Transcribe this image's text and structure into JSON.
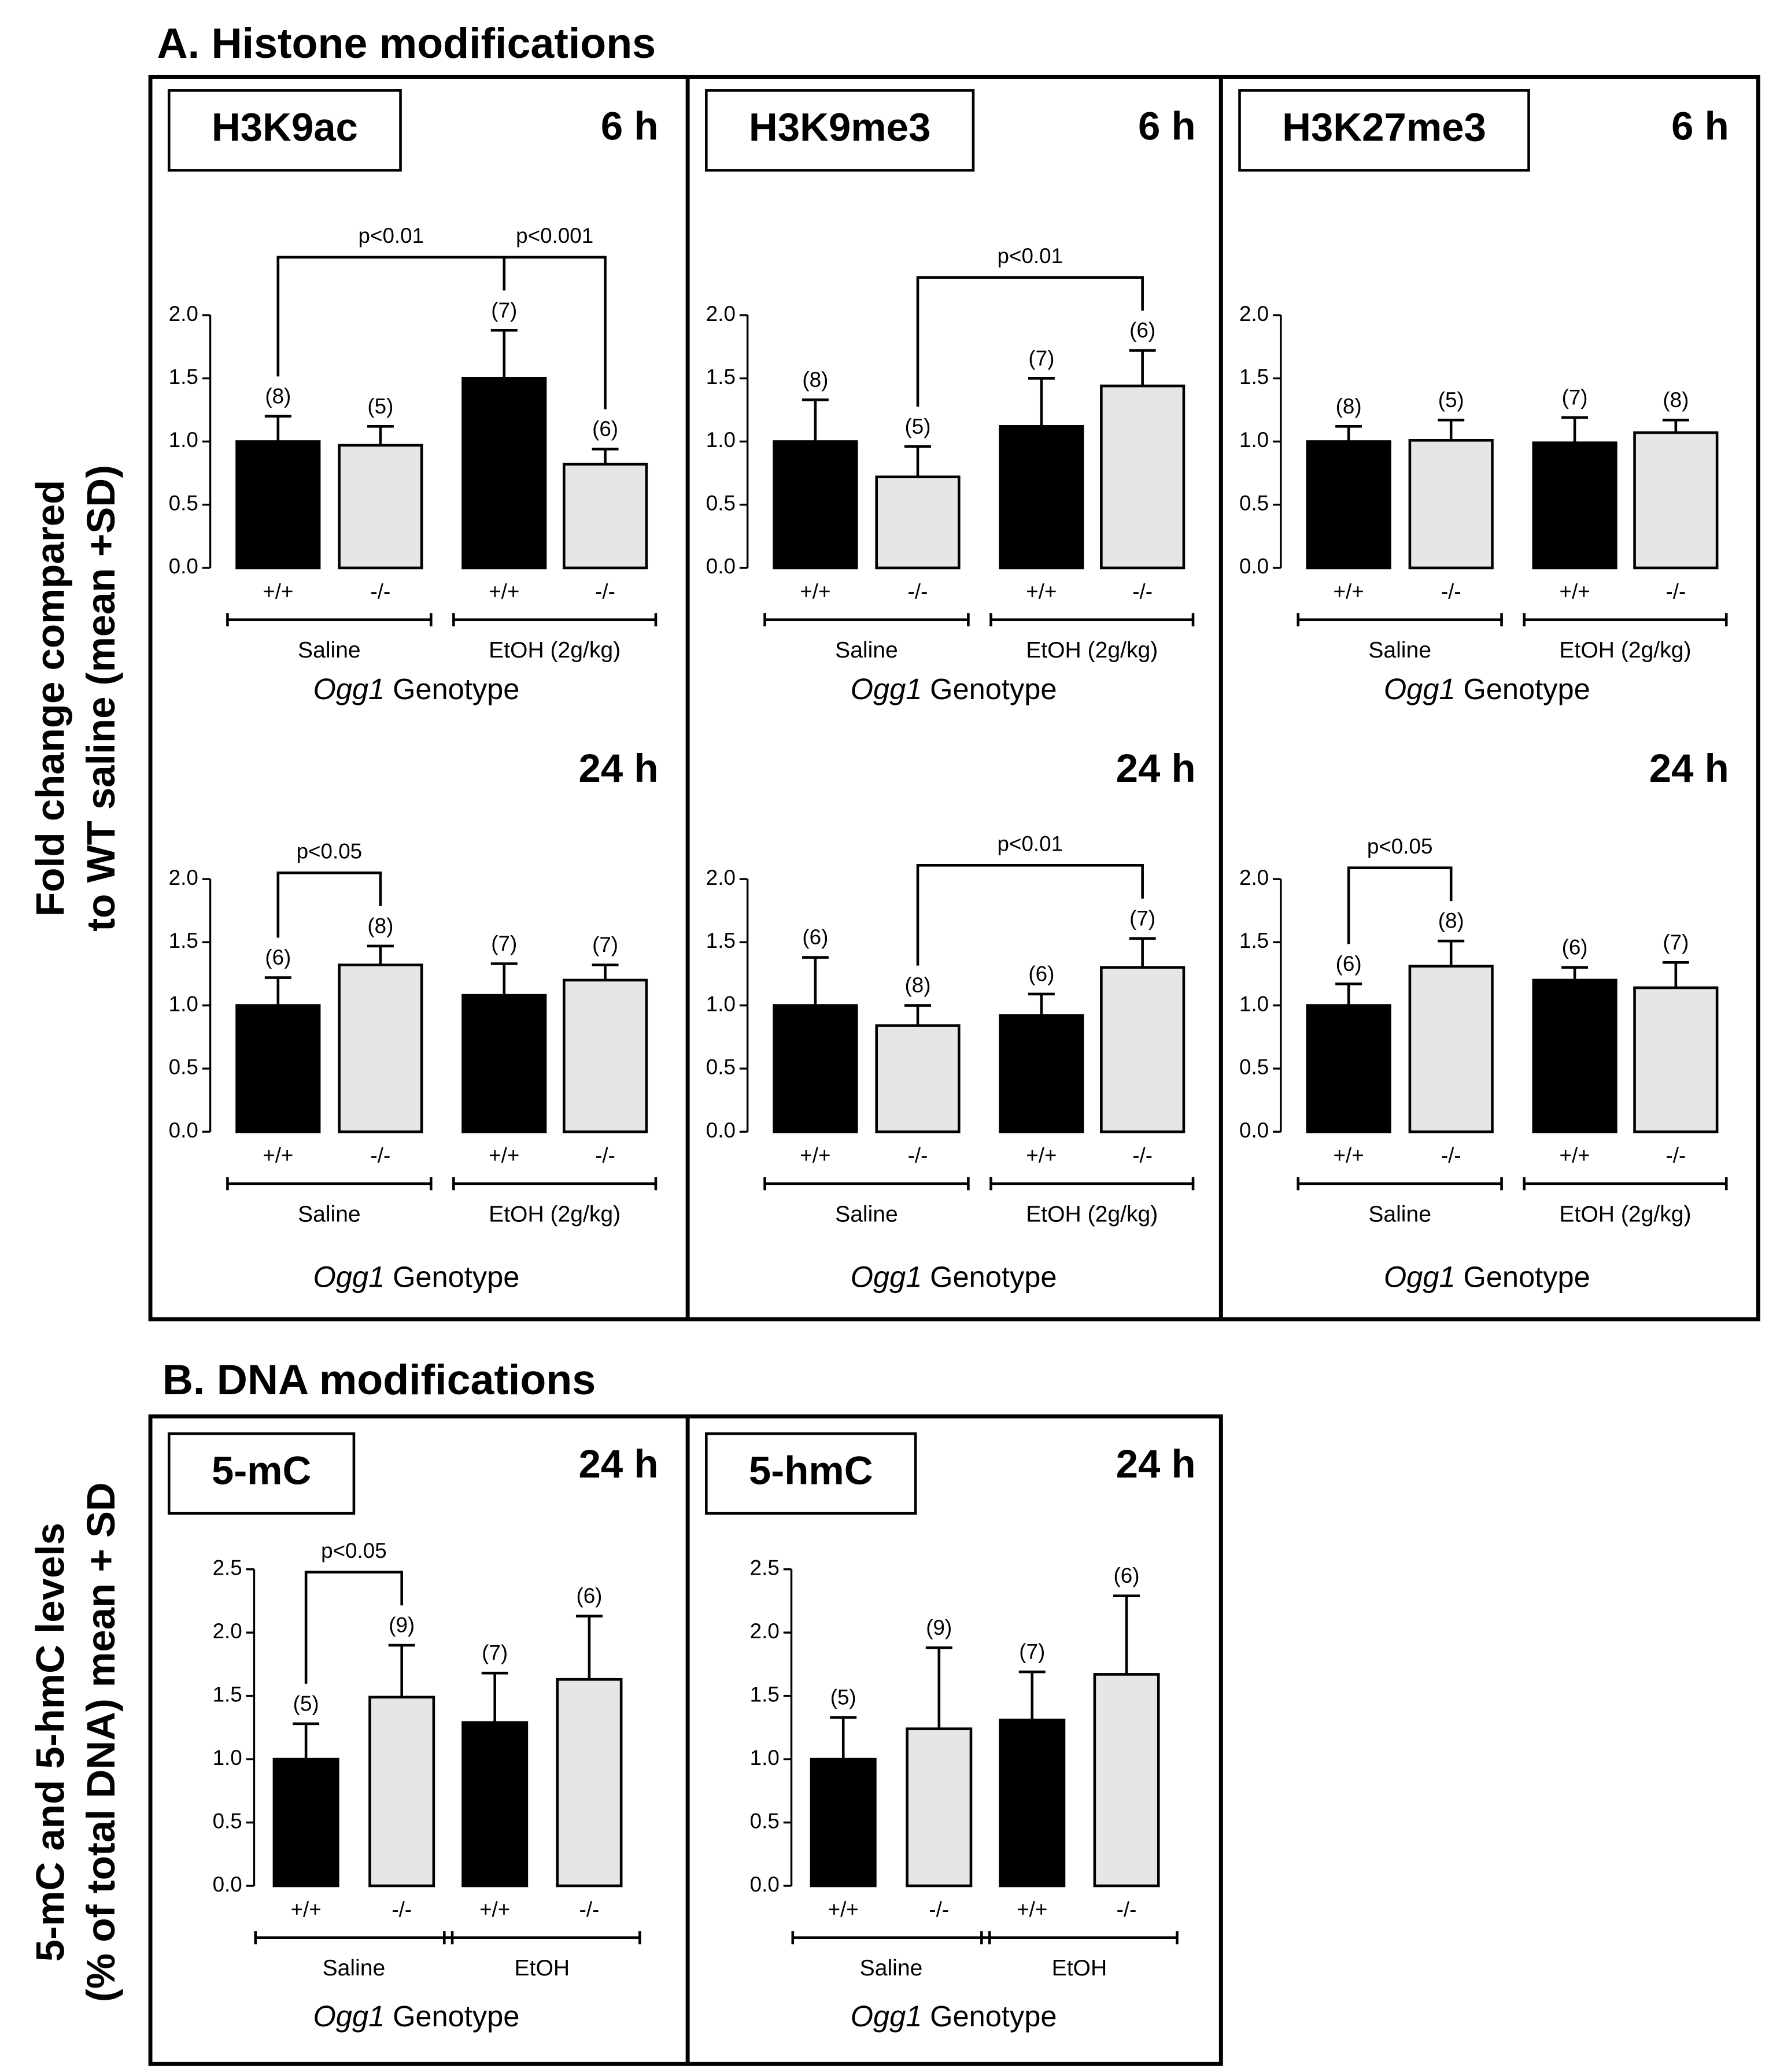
{
  "sections": [
    {
      "title": "A. Histone modifications",
      "y_label": [
        "Fold change compared",
        "to WT saline (mean +SD)"
      ]
    },
    {
      "title": "B. DNA modifications",
      "y_label": [
        "5-mC and 5-hmC levels",
        "(% of total DNA) mean + SD"
      ]
    }
  ],
  "chart_data": [
    {
      "type": "bar",
      "marker": "H3K9ac",
      "time": "6 h",
      "categories": [
        "+/+",
        "-/-",
        "+/+",
        "-/-"
      ],
      "groups": [
        "Saline",
        "EtOH (2g/kg)"
      ],
      "x_label": {
        "gene": "Ogg1",
        "rest": "Genotype"
      },
      "values": [
        1.0,
        0.97,
        1.5,
        0.82
      ],
      "errors": [
        0.2,
        0.15,
        0.38,
        0.12
      ],
      "n_labels": [
        "(8)",
        "(5)",
        "(7)",
        "(6)"
      ],
      "colors": [
        "#000000",
        "#e6e6e6",
        "#000000",
        "#e6e6e6"
      ],
      "ylim": [
        0,
        2
      ],
      "yticks": [
        {
          "value": 0,
          "label": "0.0"
        },
        {
          "value": 0.5,
          "label": "0.5"
        },
        {
          "value": 1,
          "label": "1.0"
        },
        {
          "value": 1.5,
          "label": "1.5"
        },
        {
          "value": 2,
          "label": "2.0"
        }
      ],
      "brackets": [
        {
          "from": 0,
          "to": 2,
          "label": "p<0.01"
        },
        {
          "from": 2,
          "to": 3,
          "label": "p<0.001"
        }
      ]
    },
    {
      "type": "bar",
      "marker": "H3K9me3",
      "time": "6 h",
      "categories": [
        "+/+",
        "-/-",
        "+/+",
        "-/-"
      ],
      "groups": [
        "Saline",
        "EtOH (2g/kg)"
      ],
      "x_label": {
        "gene": "Ogg1",
        "rest": "Genotype"
      },
      "values": [
        1.0,
        0.72,
        1.12,
        1.44
      ],
      "errors": [
        0.33,
        0.24,
        0.38,
        0.28
      ],
      "n_labels": [
        "(8)",
        "(5)",
        "(7)",
        "(6)"
      ],
      "colors": [
        "#000000",
        "#e6e6e6",
        "#000000",
        "#e6e6e6"
      ],
      "ylim": [
        0,
        2
      ],
      "yticks": [
        {
          "value": 0,
          "label": "0.0"
        },
        {
          "value": 0.5,
          "label": "0.5"
        },
        {
          "value": 1,
          "label": "1.0"
        },
        {
          "value": 1.5,
          "label": "1.5"
        },
        {
          "value": 2,
          "label": "2.0"
        }
      ],
      "brackets": [
        {
          "from": 1,
          "to": 3,
          "label": "p<0.01"
        }
      ]
    },
    {
      "type": "bar",
      "marker": "H3K27me3",
      "time": "6 h",
      "categories": [
        "+/+",
        "-/-",
        "+/+",
        "-/-"
      ],
      "groups": [
        "Saline",
        "EtOH (2g/kg)"
      ],
      "x_label": {
        "gene": "Ogg1",
        "rest": "Genotype"
      },
      "values": [
        1.0,
        1.01,
        0.99,
        1.07
      ],
      "errors": [
        0.12,
        0.16,
        0.2,
        0.1
      ],
      "n_labels": [
        "(8)",
        "(5)",
        "(7)",
        "(8)"
      ],
      "colors": [
        "#000000",
        "#e6e6e6",
        "#000000",
        "#e6e6e6"
      ],
      "ylim": [
        0,
        2
      ],
      "yticks": [
        {
          "value": 0,
          "label": "0.0"
        },
        {
          "value": 0.5,
          "label": "0.5"
        },
        {
          "value": 1,
          "label": "1.0"
        },
        {
          "value": 1.5,
          "label": "1.5"
        },
        {
          "value": 2,
          "label": "2.0"
        }
      ],
      "brackets": []
    },
    {
      "type": "bar",
      "time": "24 h",
      "categories": [
        "+/+",
        "-/-",
        "+/+",
        "-/-"
      ],
      "groups": [
        "Saline",
        "EtOH (2g/kg)"
      ],
      "x_label": {
        "gene": "Ogg1",
        "rest": "Genotype"
      },
      "values": [
        1.0,
        1.32,
        1.08,
        1.2
      ],
      "errors": [
        0.22,
        0.15,
        0.25,
        0.12
      ],
      "n_labels": [
        "(6)",
        "(8)",
        "(7)",
        "(7)"
      ],
      "colors": [
        "#000000",
        "#e6e6e6",
        "#000000",
        "#e6e6e6"
      ],
      "ylim": [
        0,
        2
      ],
      "yticks": [
        {
          "value": 0,
          "label": "0.0"
        },
        {
          "value": 0.5,
          "label": "0.5"
        },
        {
          "value": 1,
          "label": "1.0"
        },
        {
          "value": 1.5,
          "label": "1.5"
        },
        {
          "value": 2,
          "label": "2.0"
        }
      ],
      "brackets": [
        {
          "from": 0,
          "to": 1,
          "label": "p<0.05"
        }
      ]
    },
    {
      "type": "bar",
      "time": "24 h",
      "categories": [
        "+/+",
        "-/-",
        "+/+",
        "-/-"
      ],
      "groups": [
        "Saline",
        "EtOH (2g/kg)"
      ],
      "x_label": {
        "gene": "Ogg1",
        "rest": "Genotype"
      },
      "values": [
        1.0,
        0.84,
        0.92,
        1.3
      ],
      "errors": [
        0.38,
        0.16,
        0.17,
        0.23
      ],
      "n_labels": [
        "(6)",
        "(8)",
        "(6)",
        "(7)"
      ],
      "colors": [
        "#000000",
        "#e6e6e6",
        "#000000",
        "#e6e6e6"
      ],
      "ylim": [
        0,
        2
      ],
      "yticks": [
        {
          "value": 0,
          "label": "0.0"
        },
        {
          "value": 0.5,
          "label": "0.5"
        },
        {
          "value": 1,
          "label": "1.0"
        },
        {
          "value": 1.5,
          "label": "1.5"
        },
        {
          "value": 2,
          "label": "2.0"
        }
      ],
      "brackets": [
        {
          "from": 1,
          "to": 3,
          "label": "p<0.01"
        }
      ]
    },
    {
      "type": "bar",
      "time": "24 h",
      "categories": [
        "+/+",
        "-/-",
        "+/+",
        "-/-"
      ],
      "groups": [
        "Saline",
        "EtOH (2g/kg)"
      ],
      "x_label": {
        "gene": "Ogg1",
        "rest": "Genotype"
      },
      "values": [
        1.0,
        1.31,
        1.2,
        1.14
      ],
      "errors": [
        0.17,
        0.2,
        0.1,
        0.2
      ],
      "n_labels": [
        "(6)",
        "(8)",
        "(6)",
        "(7)"
      ],
      "colors": [
        "#000000",
        "#e6e6e6",
        "#000000",
        "#e6e6e6"
      ],
      "ylim": [
        0,
        2
      ],
      "yticks": [
        {
          "value": 0,
          "label": "0.0"
        },
        {
          "value": 0.5,
          "label": "0.5"
        },
        {
          "value": 1,
          "label": "1.0"
        },
        {
          "value": 1.5,
          "label": "1.5"
        },
        {
          "value": 2,
          "label": "2.0"
        }
      ],
      "brackets": [
        {
          "from": 0,
          "to": 1,
          "label": "p<0.05"
        }
      ]
    },
    {
      "type": "bar",
      "marker": "5-mC",
      "time": "24 h",
      "categories": [
        "+/+",
        "-/-",
        "+/+",
        "-/-"
      ],
      "groups": [
        "Saline",
        "EtOH"
      ],
      "x_label": {
        "gene": "Ogg1",
        "rest": "Genotype"
      },
      "values": [
        1.0,
        1.49,
        1.29,
        1.63
      ],
      "errors": [
        0.28,
        0.41,
        0.39,
        0.5
      ],
      "n_labels": [
        "(5)",
        "(9)",
        "(7)",
        "(6)"
      ],
      "colors": [
        "#000000",
        "#e6e6e6",
        "#000000",
        "#e6e6e6"
      ],
      "ylim": [
        0,
        2.5
      ],
      "yticks": [
        {
          "value": 0,
          "label": "0.0"
        },
        {
          "value": 0.5,
          "label": "0.5"
        },
        {
          "value": 1,
          "label": "1.0"
        },
        {
          "value": 1.5,
          "label": "1.5"
        },
        {
          "value": 2,
          "label": "2.0"
        },
        {
          "value": 2.5,
          "label": "2.5"
        }
      ],
      "brackets": [
        {
          "from": 0,
          "to": 1,
          "label": "p<0.05"
        }
      ]
    },
    {
      "type": "bar",
      "marker": "5-hmC",
      "time": "24 h",
      "categories": [
        "+/+",
        "-/-",
        "+/+",
        "-/-"
      ],
      "groups": [
        "Saline",
        "EtOH"
      ],
      "x_label": {
        "gene": "Ogg1",
        "rest": "Genotype"
      },
      "values": [
        1.0,
        1.24,
        1.31,
        1.67
      ],
      "errors": [
        0.33,
        0.64,
        0.38,
        0.62
      ],
      "n_labels": [
        "(5)",
        "(9)",
        "(7)",
        "(6)"
      ],
      "colors": [
        "#000000",
        "#e6e6e6",
        "#000000",
        "#e6e6e6"
      ],
      "ylim": [
        0,
        2.5
      ],
      "yticks": [
        {
          "value": 0,
          "label": "0.0"
        },
        {
          "value": 0.5,
          "label": "0.5"
        },
        {
          "value": 1,
          "label": "1.0"
        },
        {
          "value": 1.5,
          "label": "1.5"
        },
        {
          "value": 2,
          "label": "2.0"
        },
        {
          "value": 2.5,
          "label": "2.5"
        }
      ],
      "brackets": []
    }
  ]
}
